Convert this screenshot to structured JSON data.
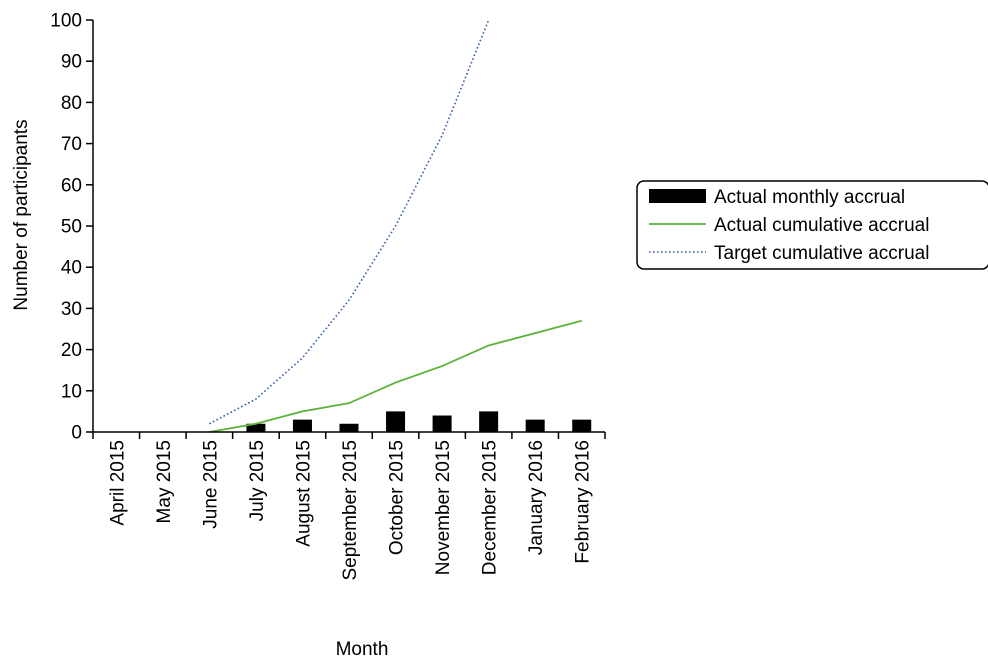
{
  "chart_data": {
    "type": "bar",
    "categories": [
      "April 2015",
      "May 2015",
      "June 2015",
      "July 2015",
      "August 2015",
      "September 2015",
      "October 2015",
      "November 2015",
      "December 2015",
      "January 2016",
      "February 2016"
    ],
    "series": [
      {
        "name": "Actual monthly accrual",
        "type": "bar",
        "color": "#000000",
        "values": [
          0,
          0,
          0,
          2,
          3,
          2,
          5,
          4,
          5,
          3,
          3
        ]
      },
      {
        "name": "Actual cumulative accrual",
        "type": "line",
        "style": "solid",
        "color": "#5cb33b",
        "values": [
          null,
          null,
          0,
          2,
          5,
          7,
          12,
          16,
          21,
          24,
          27
        ]
      },
      {
        "name": "Target cumulative accrual",
        "type": "line",
        "style": "dotted",
        "color": "#3a5fa8",
        "values": [
          null,
          null,
          2,
          8,
          18,
          32,
          50,
          72,
          100,
          null,
          null
        ]
      }
    ],
    "xlabel": "Month",
    "ylabel": "Number of participants",
    "ylim": [
      0,
      100
    ],
    "yticks": [
      0,
      10,
      20,
      30,
      40,
      50,
      60,
      70,
      80,
      90,
      100
    ],
    "grid": false,
    "legend": "right"
  }
}
